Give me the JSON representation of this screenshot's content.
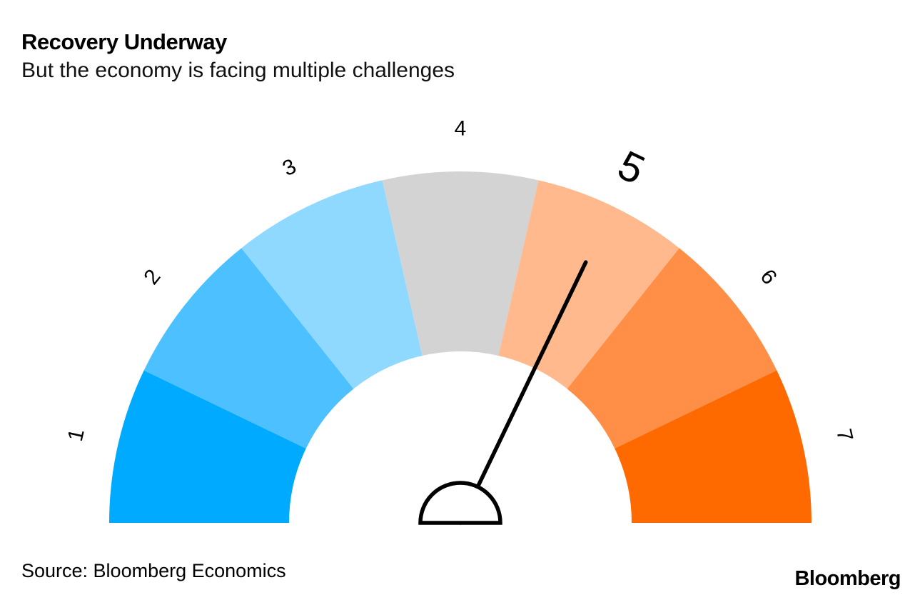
{
  "header": {
    "title": "Recovery Underway",
    "subtitle": "But the economy is facing multiple challenges"
  },
  "footer": {
    "source": "Source: Bloomberg Economics",
    "brand_logo": "Bloomberg"
  },
  "chart_data": {
    "type": "gauge",
    "title": "Recovery Underway",
    "subtitle": "But the economy is facing multiple challenges",
    "arc_span_degrees": 180,
    "scale_min": 1,
    "scale_max": 7,
    "tick_labels": [
      "1",
      "2",
      "3",
      "4",
      "5",
      "6",
      "7"
    ],
    "segments": [
      {
        "label": "1",
        "color": "#00AAFF",
        "emphasized": false
      },
      {
        "label": "2",
        "color": "#4DC0FF",
        "emphasized": false
      },
      {
        "label": "3",
        "color": "#8FD8FF",
        "emphasized": false
      },
      {
        "label": "4",
        "color": "#D3D3D3",
        "emphasized": false
      },
      {
        "label": "5",
        "color": "#FFB98C",
        "emphasized": true
      },
      {
        "label": "6",
        "color": "#FF8E47",
        "emphasized": false
      },
      {
        "label": "7",
        "color": "#FF6A00",
        "emphasized": false
      }
    ],
    "needle_value": 5,
    "needle_color": "#000000",
    "pivot_fill": "#ffffff",
    "pivot_stroke": "#000000",
    "layout_hint": "semicircular half-donut gauge; labels outside arc rotated radially; emphasized enlarged label at current value; needle from white semicircle hub; no legend; no gridlines"
  }
}
